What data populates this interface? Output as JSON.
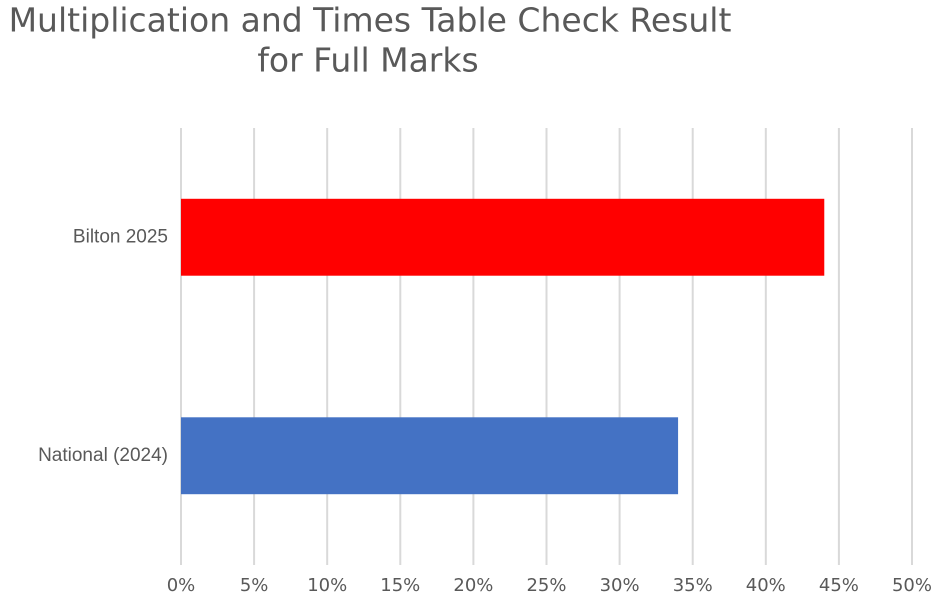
{
  "chart_data": {
    "type": "bar",
    "orientation": "horizontal",
    "title": [
      "Multiplication and Times Table Check Result",
      "for Full Marks"
    ],
    "categories": [
      "Bilton 2025",
      "National (2024)"
    ],
    "values": [
      44,
      34
    ],
    "colors": [
      "#ff0000",
      "#4472c4"
    ],
    "xlim": [
      0,
      50
    ],
    "xticks": [
      {
        "value": 0,
        "label": "0%"
      },
      {
        "value": 5,
        "label": "5%"
      },
      {
        "value": 10,
        "label": "10%"
      },
      {
        "value": 15,
        "label": "15%"
      },
      {
        "value": 20,
        "label": "20%"
      },
      {
        "value": 25,
        "label": "25%"
      },
      {
        "value": 30,
        "label": "30%"
      },
      {
        "value": 35,
        "label": "35%"
      },
      {
        "value": 40,
        "label": "40%"
      },
      {
        "value": 45,
        "label": "45%"
      },
      {
        "value": 50,
        "label": "50%"
      }
    ],
    "grid": true
  }
}
